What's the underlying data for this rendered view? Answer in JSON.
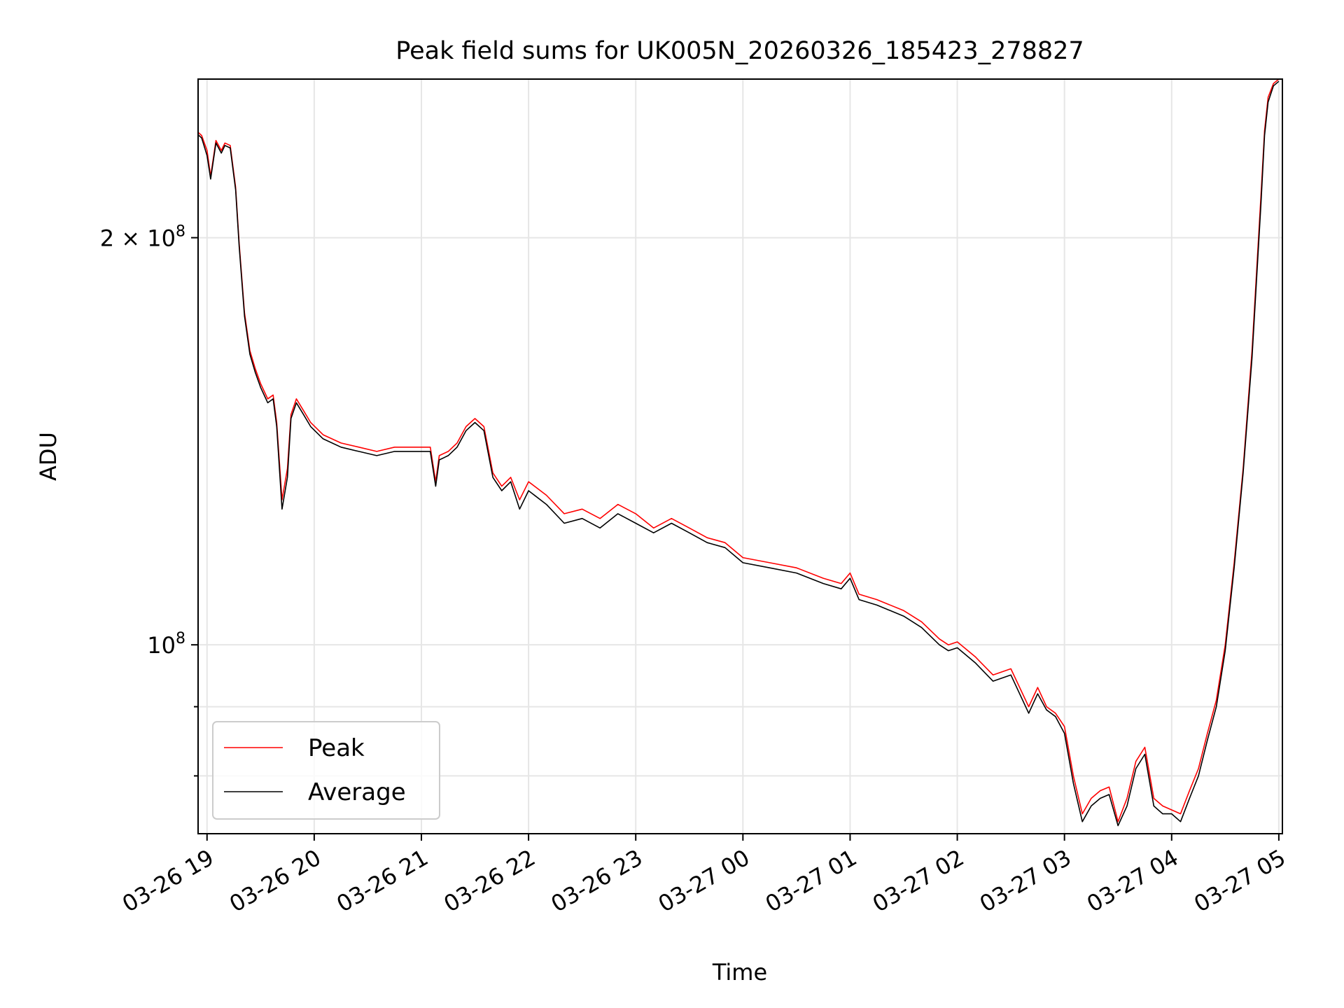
{
  "chart_data": {
    "type": "line",
    "title": "Peak field sums for UK005N_20260326_185423_278827",
    "xlabel": "Time",
    "ylabel": "ADU",
    "yscale": "log",
    "grid": true,
    "legend_position": "lower-left",
    "xlim": [
      "2026-03-26 18:55",
      "2026-03-27 05:02"
    ],
    "ylim": [
      72500000,
      262000000
    ],
    "x_ticks": [
      {
        "t": "2026-03-26 19:00",
        "label": "03-26 19"
      },
      {
        "t": "2026-03-26 20:00",
        "label": "03-26 20"
      },
      {
        "t": "2026-03-26 21:00",
        "label": "03-26 21"
      },
      {
        "t": "2026-03-26 22:00",
        "label": "03-26 22"
      },
      {
        "t": "2026-03-26 23:00",
        "label": "03-26 23"
      },
      {
        "t": "2026-03-27 00:00",
        "label": "03-27 00"
      },
      {
        "t": "2026-03-27 01:00",
        "label": "03-27 01"
      },
      {
        "t": "2026-03-27 02:00",
        "label": "03-27 02"
      },
      {
        "t": "2026-03-27 03:00",
        "label": "03-27 03"
      },
      {
        "t": "2026-03-27 04:00",
        "label": "03-27 04"
      },
      {
        "t": "2026-03-27 05:00",
        "label": "03-27 05"
      }
    ],
    "y_major_ticks": [
      {
        "value": 100000000,
        "base": "10",
        "exp": "8"
      },
      {
        "value": 200000000,
        "base": "2 × 10",
        "exp": "8"
      }
    ],
    "y_minor_ticks": [
      80000000,
      90000000
    ],
    "series": [
      {
        "name": "Peak",
        "color": "#ff0000",
        "x": [
          "2026-03-26 18:54",
          "2026-03-26 18:57",
          "2026-03-26 19:00",
          "2026-03-26 19:02",
          "2026-03-26 19:05",
          "2026-03-26 19:08",
          "2026-03-26 19:10",
          "2026-03-26 19:13",
          "2026-03-26 19:16",
          "2026-03-26 19:18",
          "2026-03-26 19:21",
          "2026-03-26 19:24",
          "2026-03-26 19:27",
          "2026-03-26 19:30",
          "2026-03-26 19:34",
          "2026-03-26 19:37",
          "2026-03-26 19:39",
          "2026-03-26 19:42",
          "2026-03-26 19:45",
          "2026-03-26 19:47",
          "2026-03-26 19:50",
          "2026-03-26 19:54",
          "2026-03-26 19:58",
          "2026-03-26 20:05",
          "2026-03-26 20:15",
          "2026-03-26 20:25",
          "2026-03-26 20:35",
          "2026-03-26 20:45",
          "2026-03-26 20:55",
          "2026-03-26 21:05",
          "2026-03-26 21:08",
          "2026-03-26 21:10",
          "2026-03-26 21:15",
          "2026-03-26 21:20",
          "2026-03-26 21:25",
          "2026-03-26 21:30",
          "2026-03-26 21:35",
          "2026-03-26 21:40",
          "2026-03-26 21:45",
          "2026-03-26 21:50",
          "2026-03-26 21:55",
          "2026-03-26 22:00",
          "2026-03-26 22:10",
          "2026-03-26 22:20",
          "2026-03-26 22:30",
          "2026-03-26 22:40",
          "2026-03-26 22:50",
          "2026-03-26 23:00",
          "2026-03-26 23:10",
          "2026-03-26 23:20",
          "2026-03-26 23:30",
          "2026-03-26 23:40",
          "2026-03-26 23:50",
          "2026-03-27 00:00",
          "2026-03-27 00:15",
          "2026-03-27 00:30",
          "2026-03-27 00:45",
          "2026-03-27 00:55",
          "2026-03-27 01:00",
          "2026-03-27 01:05",
          "2026-03-27 01:15",
          "2026-03-27 01:30",
          "2026-03-27 01:40",
          "2026-03-27 01:50",
          "2026-03-27 01:55",
          "2026-03-27 02:00",
          "2026-03-27 02:10",
          "2026-03-27 02:20",
          "2026-03-27 02:30",
          "2026-03-27 02:40",
          "2026-03-27 02:45",
          "2026-03-27 02:50",
          "2026-03-27 02:55",
          "2026-03-27 03:00",
          "2026-03-27 03:05",
          "2026-03-27 03:10",
          "2026-03-27 03:15",
          "2026-03-27 03:20",
          "2026-03-27 03:25",
          "2026-03-27 03:30",
          "2026-03-27 03:35",
          "2026-03-27 03:40",
          "2026-03-27 03:45",
          "2026-03-27 03:50",
          "2026-03-27 03:55",
          "2026-03-27 04:00",
          "2026-03-27 04:05",
          "2026-03-27 04:10",
          "2026-03-27 04:15",
          "2026-03-27 04:20",
          "2026-03-27 04:25",
          "2026-03-27 04:30",
          "2026-03-27 04:35",
          "2026-03-27 04:40",
          "2026-03-27 04:45",
          "2026-03-27 04:50",
          "2026-03-27 04:52",
          "2026-03-27 04:54",
          "2026-03-27 04:57",
          "2026-03-27 05:00"
        ],
        "values": [
          240000000,
          238000000,
          232000000,
          222000000,
          236000000,
          232000000,
          235000000,
          234000000,
          218000000,
          198000000,
          176000000,
          165000000,
          160000000,
          156000000,
          152000000,
          153000000,
          146000000,
          128000000,
          135000000,
          148000000,
          152000000,
          149000000,
          146000000,
          143000000,
          141000000,
          140000000,
          139000000,
          140000000,
          140000000,
          140000000,
          132000000,
          138000000,
          139000000,
          141000000,
          145000000,
          147000000,
          145000000,
          134000000,
          131000000,
          133000000,
          128000000,
          132000000,
          129000000,
          125000000,
          126000000,
          124000000,
          127000000,
          125000000,
          122000000,
          124000000,
          122000000,
          120000000,
          119000000,
          116000000,
          115000000,
          114000000,
          112000000,
          111000000,
          113000000,
          109000000,
          108000000,
          106000000,
          104000000,
          101000000,
          100000000,
          100500000,
          98000000,
          95000000,
          96000000,
          90000000,
          93000000,
          90000000,
          89000000,
          87000000,
          80000000,
          75000000,
          77000000,
          78000000,
          78500000,
          74000000,
          77000000,
          82000000,
          84000000,
          77000000,
          76000000,
          75500000,
          75000000,
          78000000,
          81000000,
          86000000,
          91000000,
          100000000,
          115000000,
          135000000,
          165000000,
          215000000,
          240000000,
          254000000,
          260000000,
          262000000
        ]
      },
      {
        "name": "Average",
        "color": "#000000",
        "x": [
          "2026-03-26 18:54",
          "2026-03-26 18:57",
          "2026-03-26 19:00",
          "2026-03-26 19:02",
          "2026-03-26 19:05",
          "2026-03-26 19:08",
          "2026-03-26 19:10",
          "2026-03-26 19:13",
          "2026-03-26 19:16",
          "2026-03-26 19:18",
          "2026-03-26 19:21",
          "2026-03-26 19:24",
          "2026-03-26 19:27",
          "2026-03-26 19:30",
          "2026-03-26 19:34",
          "2026-03-26 19:37",
          "2026-03-26 19:39",
          "2026-03-26 19:42",
          "2026-03-26 19:45",
          "2026-03-26 19:47",
          "2026-03-26 19:50",
          "2026-03-26 19:54",
          "2026-03-26 19:58",
          "2026-03-26 20:05",
          "2026-03-26 20:15",
          "2026-03-26 20:25",
          "2026-03-26 20:35",
          "2026-03-26 20:45",
          "2026-03-26 20:55",
          "2026-03-26 21:05",
          "2026-03-26 21:08",
          "2026-03-26 21:10",
          "2026-03-26 21:15",
          "2026-03-26 21:20",
          "2026-03-26 21:25",
          "2026-03-26 21:30",
          "2026-03-26 21:35",
          "2026-03-26 21:40",
          "2026-03-26 21:45",
          "2026-03-26 21:50",
          "2026-03-26 21:55",
          "2026-03-26 22:00",
          "2026-03-26 22:10",
          "2026-03-26 22:20",
          "2026-03-26 22:30",
          "2026-03-26 22:40",
          "2026-03-26 22:50",
          "2026-03-26 23:00",
          "2026-03-26 23:10",
          "2026-03-26 23:20",
          "2026-03-26 23:30",
          "2026-03-26 23:40",
          "2026-03-26 23:50",
          "2026-03-27 00:00",
          "2026-03-27 00:15",
          "2026-03-27 00:30",
          "2026-03-27 00:45",
          "2026-03-27 00:55",
          "2026-03-27 01:00",
          "2026-03-27 01:05",
          "2026-03-27 01:15",
          "2026-03-27 01:30",
          "2026-03-27 01:40",
          "2026-03-27 01:50",
          "2026-03-27 01:55",
          "2026-03-27 02:00",
          "2026-03-27 02:10",
          "2026-03-27 02:20",
          "2026-03-27 02:30",
          "2026-03-27 02:40",
          "2026-03-27 02:45",
          "2026-03-27 02:50",
          "2026-03-27 02:55",
          "2026-03-27 03:00",
          "2026-03-27 03:05",
          "2026-03-27 03:10",
          "2026-03-27 03:15",
          "2026-03-27 03:20",
          "2026-03-27 03:25",
          "2026-03-27 03:30",
          "2026-03-27 03:35",
          "2026-03-27 03:40",
          "2026-03-27 03:45",
          "2026-03-27 03:50",
          "2026-03-27 03:55",
          "2026-03-27 04:00",
          "2026-03-27 04:05",
          "2026-03-27 04:10",
          "2026-03-27 04:15",
          "2026-03-27 04:20",
          "2026-03-27 04:25",
          "2026-03-27 04:30",
          "2026-03-27 04:35",
          "2026-03-27 04:40",
          "2026-03-27 04:45",
          "2026-03-27 04:50",
          "2026-03-27 04:52",
          "2026-03-27 04:54",
          "2026-03-27 04:57",
          "2026-03-27 05:00"
        ],
        "values": [
          239000000,
          237000000,
          230000000,
          221000000,
          235000000,
          231000000,
          234000000,
          233000000,
          217000000,
          197000000,
          175000000,
          164000000,
          159000000,
          155000000,
          151000000,
          152000000,
          145000000,
          126000000,
          133000000,
          147000000,
          151000000,
          148000000,
          145000000,
          142000000,
          140000000,
          139000000,
          138000000,
          139000000,
          139000000,
          139000000,
          131000000,
          137000000,
          138000000,
          140000000,
          144000000,
          146000000,
          144000000,
          133000000,
          130000000,
          132000000,
          126000000,
          130000000,
          127000000,
          123000000,
          124000000,
          122000000,
          125000000,
          123000000,
          121000000,
          123000000,
          121000000,
          119000000,
          118000000,
          115000000,
          114000000,
          113000000,
          111000000,
          110000000,
          112000000,
          108000000,
          107000000,
          105000000,
          103000000,
          100000000,
          99000000,
          99500000,
          97000000,
          94000000,
          95000000,
          89000000,
          92000000,
          89500000,
          88500000,
          86000000,
          79000000,
          74000000,
          76000000,
          77000000,
          77500000,
          73500000,
          76000000,
          81000000,
          83000000,
          76000000,
          75000000,
          75000000,
          74000000,
          77000000,
          80000000,
          85000000,
          90000000,
          99000000,
          114000000,
          134000000,
          163000000,
          212000000,
          238000000,
          252000000,
          259000000,
          261000000
        ]
      }
    ]
  }
}
